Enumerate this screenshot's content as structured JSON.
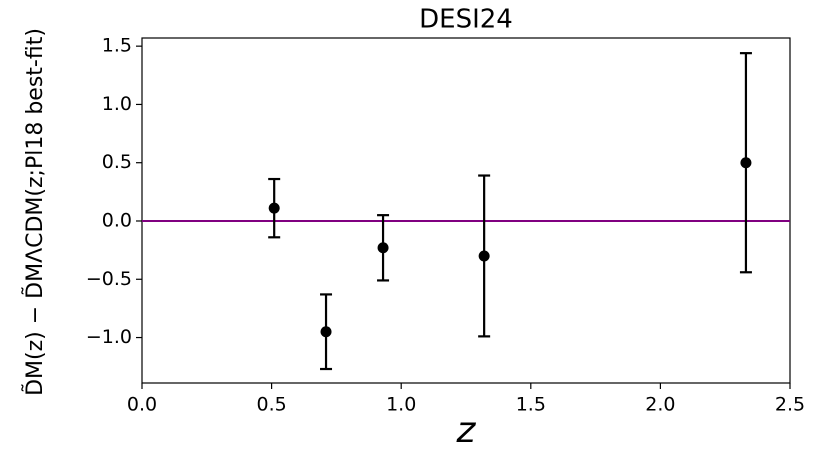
{
  "chart_data": {
    "type": "errorbar",
    "title": "DESI24",
    "xlabel": "z",
    "ylabel": "D̃M(z) − D̃MΛCDM(z;Pl18 best-fit)",
    "x": [
      0.51,
      0.71,
      0.93,
      1.32,
      2.33
    ],
    "values": [
      0.11,
      -0.95,
      -0.23,
      -0.3,
      0.5
    ],
    "errors": [
      0.25,
      0.32,
      0.28,
      0.69,
      0.94
    ],
    "color": "#000000",
    "hline": 0,
    "hline_color": "#800080",
    "xlim": [
      0,
      2.5
    ],
    "xticks": [
      {
        "value": 0,
        "label": "0.0"
      },
      0.5,
      {
        "value": 1,
        "label": "1.0"
      },
      1.5,
      {
        "value": 2,
        "label": "2.0"
      },
      2.5
    ],
    "ylim": [
      -1.39,
      1.57
    ],
    "yticks": [
      {
        "value": -1,
        "label": "−1.0"
      },
      {
        "value": -0.5,
        "label": "−0.5"
      },
      {
        "value": 0,
        "label": "0.0"
      },
      0.5,
      {
        "value": 1,
        "label": "1.0"
      },
      1.5
    ],
    "grid": false
  }
}
